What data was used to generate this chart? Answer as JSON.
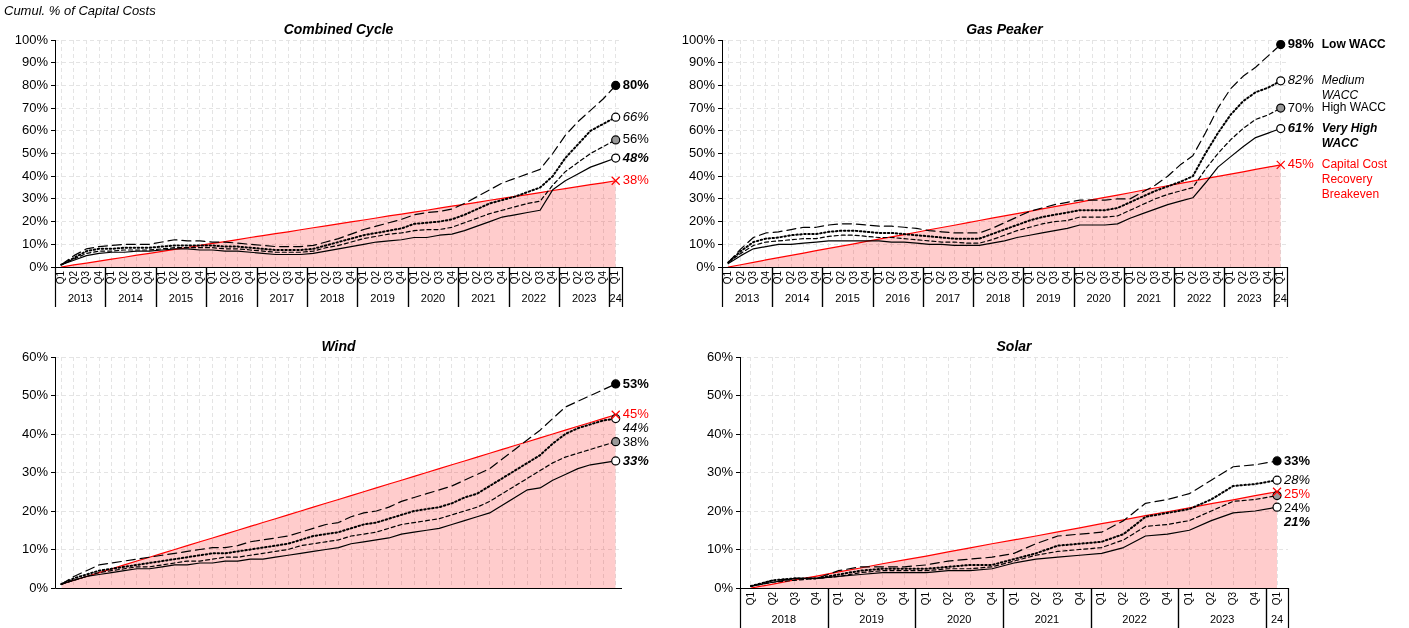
{
  "chart_data": [
    {
      "type": "line",
      "title": "Combined Cycle",
      "ylabel": "Cumul. % of Capital Costs",
      "grid": true,
      "ylim": [
        0,
        100
      ],
      "yticks": [
        {
          "value": 0,
          "label": "0%"
        },
        {
          "value": 10,
          "label": "10%"
        },
        {
          "value": 20,
          "label": "20%"
        },
        {
          "value": 30,
          "label": "30%"
        },
        {
          "value": 40,
          "label": "40%"
        },
        {
          "value": 50,
          "label": "50%"
        },
        {
          "value": 60,
          "label": "60%"
        },
        {
          "value": 70,
          "label": "70%"
        },
        {
          "value": 80,
          "label": "80%"
        },
        {
          "value": 90,
          "label": "90%"
        },
        {
          "value": 100,
          "label": "100%"
        }
      ],
      "categories": [
        "Q1",
        "Q2",
        "Q3",
        "Q4",
        "Q1",
        "Q2",
        "Q3",
        "Q4",
        "Q1",
        "Q2",
        "Q3",
        "Q4",
        "Q1",
        "Q2",
        "Q3",
        "Q4",
        "Q1",
        "Q2",
        "Q3",
        "Q4",
        "Q1",
        "Q2",
        "Q3",
        "Q4",
        "Q1",
        "Q2",
        "Q3",
        "Q4",
        "Q1",
        "Q2",
        "Q3",
        "Q4",
        "Q1",
        "Q2",
        "Q3",
        "Q4",
        "Q1",
        "Q2",
        "Q3",
        "Q4",
        "Q1",
        "Q2",
        "Q3",
        "Q4",
        "Q1"
      ],
      "annotations": [
        "2013",
        "2014",
        "2015",
        "2016",
        "2017",
        "2018",
        "2019",
        "2020",
        "2021",
        "2022",
        "2023",
        "24"
      ],
      "series": [
        {
          "color": "#000000",
          "line_style": "dashed",
          "values": [
            1,
            5,
            8,
            9,
            9.5,
            10,
            10,
            10,
            11,
            12,
            11.5,
            11.5,
            11,
            11,
            10.5,
            10,
            9.5,
            9,
            9,
            9,
            9.5,
            11,
            12.5,
            14.5,
            16.5,
            18,
            19.5,
            21,
            23,
            24,
            24.5,
            25.5,
            28,
            31,
            34,
            37,
            39,
            41,
            43,
            50,
            58,
            64,
            69,
            74,
            80
          ],
          "value_labels": [
            null,
            null,
            null,
            null,
            null,
            null,
            null,
            null,
            null,
            null,
            null,
            null,
            null,
            null,
            null,
            null,
            null,
            null,
            null,
            null,
            null,
            null,
            null,
            null,
            null,
            null,
            null,
            null,
            null,
            null,
            null,
            null,
            null,
            null,
            null,
            null,
            null,
            null,
            null,
            null,
            null,
            null,
            null,
            null,
            "80%"
          ]
        },
        {
          "color": "#000000",
          "line_style": "dotted",
          "values": [
            1,
            4,
            7,
            8,
            8,
            8.5,
            8.5,
            8.5,
            9,
            9.5,
            9.5,
            9.5,
            9.5,
            9,
            9,
            8.5,
            8,
            7.5,
            7.5,
            7.5,
            8,
            9.5,
            11,
            12.5,
            14,
            15,
            16,
            17,
            19,
            19.5,
            20,
            21,
            23,
            25.5,
            28,
            29.5,
            31,
            33,
            35,
            40,
            48,
            54,
            60,
            63,
            66
          ],
          "value_labels": [
            null,
            null,
            null,
            null,
            null,
            null,
            null,
            null,
            null,
            null,
            null,
            null,
            null,
            null,
            null,
            null,
            null,
            null,
            null,
            null,
            null,
            null,
            null,
            null,
            null,
            null,
            null,
            null,
            null,
            null,
            null,
            null,
            null,
            null,
            null,
            null,
            null,
            null,
            null,
            null,
            null,
            null,
            null,
            null,
            "66%"
          ]
        },
        {
          "color": "#000000",
          "line_style": "dashed",
          "values": [
            1,
            3.5,
            6,
            7,
            7,
            7.5,
            7.5,
            7.5,
            8,
            8.5,
            8.5,
            8.5,
            8.5,
            8,
            8,
            7.5,
            7,
            6.5,
            6.5,
            6.5,
            7,
            8.5,
            9.5,
            11,
            12.5,
            13.5,
            14.5,
            15,
            16,
            16.5,
            16.5,
            17.5,
            19.5,
            21.5,
            23.5,
            25,
            26.5,
            28,
            29,
            36,
            42,
            46,
            50,
            53,
            56
          ],
          "value_labels": [
            null,
            null,
            null,
            null,
            null,
            null,
            null,
            null,
            null,
            null,
            null,
            null,
            null,
            null,
            null,
            null,
            null,
            null,
            null,
            null,
            null,
            null,
            null,
            null,
            null,
            null,
            null,
            null,
            null,
            null,
            null,
            null,
            null,
            null,
            null,
            null,
            null,
            null,
            null,
            null,
            null,
            null,
            null,
            null,
            "56%"
          ]
        },
        {
          "color": "#000000",
          "line_style": "solid",
          "values": [
            1,
            3,
            5,
            6,
            6.5,
            6.5,
            7,
            7,
            7.5,
            8,
            8,
            7.5,
            7.5,
            7,
            7,
            6.5,
            6,
            5.5,
            5.5,
            5.5,
            6,
            7,
            8,
            9,
            10,
            11,
            11.5,
            12,
            13,
            13,
            14,
            14.5,
            16,
            18,
            20,
            22,
            23,
            24,
            25,
            34,
            38,
            41,
            44,
            46,
            48
          ],
          "value_labels": [
            null,
            null,
            null,
            null,
            null,
            null,
            null,
            null,
            null,
            null,
            null,
            null,
            null,
            null,
            null,
            null,
            null,
            null,
            null,
            null,
            null,
            null,
            null,
            null,
            null,
            null,
            null,
            null,
            null,
            null,
            null,
            null,
            null,
            null,
            null,
            null,
            null,
            null,
            null,
            null,
            null,
            null,
            null,
            null,
            "48%"
          ]
        },
        {
          "type": "area",
          "color": "#ff0000",
          "line_style": "solid",
          "values": [
            0,
            0.9,
            1.7,
            2.6,
            3.5,
            4.3,
            5.2,
            6,
            6.9,
            7.8,
            8.6,
            9.5,
            10.4,
            11.2,
            12.1,
            13,
            13.8,
            14.7,
            15.5,
            16.4,
            17.3,
            18.1,
            19,
            19.9,
            20.7,
            21.6,
            22.5,
            23.3,
            24.2,
            25,
            25.9,
            26.8,
            27.6,
            28.5,
            29.4,
            30.2,
            31.1,
            31.9,
            32.8,
            33.7,
            34.5,
            35.4,
            36.3,
            37.1,
            38
          ],
          "value_labels": [
            null,
            null,
            null,
            null,
            null,
            null,
            null,
            null,
            null,
            null,
            null,
            null,
            null,
            null,
            null,
            null,
            null,
            null,
            null,
            null,
            null,
            null,
            null,
            null,
            null,
            null,
            null,
            null,
            null,
            null,
            null,
            null,
            null,
            null,
            null,
            null,
            null,
            null,
            null,
            null,
            null,
            null,
            null,
            null,
            "38%"
          ]
        }
      ]
    },
    {
      "type": "line",
      "title": "Gas Peaker",
      "grid": true,
      "ylim": [
        0,
        100
      ],
      "yticks": [
        {
          "value": 0,
          "label": "0%"
        },
        {
          "value": 10,
          "label": "10%"
        },
        {
          "value": 20,
          "label": "20%"
        },
        {
          "value": 30,
          "label": "30%"
        },
        {
          "value": 40,
          "label": "40%"
        },
        {
          "value": 50,
          "label": "50%"
        },
        {
          "value": 60,
          "label": "60%"
        },
        {
          "value": 70,
          "label": "70%"
        },
        {
          "value": 80,
          "label": "80%"
        },
        {
          "value": 90,
          "label": "90%"
        },
        {
          "value": 100,
          "label": "100%"
        }
      ],
      "categories": [
        "Q1",
        "Q2",
        "Q3",
        "Q4",
        "Q1",
        "Q2",
        "Q3",
        "Q4",
        "Q1",
        "Q2",
        "Q3",
        "Q4",
        "Q1",
        "Q2",
        "Q3",
        "Q4",
        "Q1",
        "Q2",
        "Q3",
        "Q4",
        "Q1",
        "Q2",
        "Q3",
        "Q4",
        "Q1",
        "Q2",
        "Q3",
        "Q4",
        "Q1",
        "Q2",
        "Q3",
        "Q4",
        "Q1",
        "Q2",
        "Q3",
        "Q4",
        "Q1",
        "Q2",
        "Q3",
        "Q4",
        "Q1",
        "Q2",
        "Q3",
        "Q4",
        "Q1"
      ],
      "annotations": [
        "2013",
        "2014",
        "2015",
        "2016",
        "2017",
        "2018",
        "2019",
        "2020",
        "2021",
        "2022",
        "2023",
        "24"
      ],
      "series": [
        {
          "name": "Low WACC",
          "color": "#000000",
          "line_style": "dashed",
          "values": [
            2,
            8,
            13,
            15,
            15.5,
            16.5,
            17.5,
            17.5,
            18.5,
            19,
            19,
            18.5,
            18,
            18,
            17.5,
            17,
            16,
            15.5,
            15,
            15,
            15,
            17,
            19.5,
            22,
            24.5,
            26,
            27.5,
            28.5,
            29.5,
            29.5,
            29.5,
            30,
            30,
            33,
            36,
            40,
            45,
            49,
            59,
            70,
            78.5,
            84,
            88,
            93,
            98
          ],
          "value_labels": [
            null,
            null,
            null,
            null,
            null,
            null,
            null,
            null,
            null,
            null,
            null,
            null,
            null,
            null,
            null,
            null,
            null,
            null,
            null,
            null,
            null,
            null,
            null,
            null,
            null,
            null,
            null,
            null,
            null,
            null,
            null,
            null,
            null,
            null,
            null,
            null,
            null,
            null,
            null,
            null,
            null,
            null,
            null,
            null,
            "98%"
          ]
        },
        {
          "name": "Medium WACC",
          "color": "#000000",
          "line_style": "dotted",
          "values": [
            2,
            7,
            11,
            12.5,
            13,
            14,
            14.5,
            14.5,
            15.5,
            16,
            16,
            15.5,
            15,
            15,
            14.5,
            14,
            13.5,
            13,
            12.5,
            12.5,
            12.5,
            14.5,
            16.5,
            18.5,
            20.5,
            22,
            23,
            24,
            25,
            25,
            25,
            26,
            28.5,
            31,
            33.5,
            35.5,
            37.5,
            40,
            50,
            59,
            67,
            73,
            77,
            79,
            82
          ],
          "value_labels": [
            null,
            null,
            null,
            null,
            null,
            null,
            null,
            null,
            null,
            null,
            null,
            null,
            null,
            null,
            null,
            null,
            null,
            null,
            null,
            null,
            null,
            null,
            null,
            null,
            null,
            null,
            null,
            null,
            null,
            null,
            null,
            null,
            null,
            null,
            null,
            null,
            null,
            null,
            null,
            null,
            null,
            null,
            null,
            null,
            "82%"
          ]
        },
        {
          "name": "High WACC",
          "color": "#000000",
          "line_style": "dashed",
          "values": [
            2,
            6,
            9.5,
            11,
            11.5,
            12,
            12.5,
            12.5,
            13.5,
            14,
            14,
            13.5,
            13,
            13,
            12.5,
            12,
            11.5,
            11,
            11,
            10.5,
            10.5,
            12,
            14,
            16,
            17.5,
            19,
            20,
            20.5,
            22,
            22,
            22,
            22.5,
            25,
            27.5,
            30,
            32,
            33.5,
            35,
            43,
            50,
            56,
            61,
            65,
            67,
            70
          ],
          "value_labels": [
            null,
            null,
            null,
            null,
            null,
            null,
            null,
            null,
            null,
            null,
            null,
            null,
            null,
            null,
            null,
            null,
            null,
            null,
            null,
            null,
            null,
            null,
            null,
            null,
            null,
            null,
            null,
            null,
            null,
            null,
            null,
            null,
            null,
            null,
            null,
            null,
            null,
            null,
            null,
            null,
            null,
            null,
            null,
            null,
            "70%"
          ]
        },
        {
          "name": "Very High WACC",
          "color": "#000000",
          "line_style": "solid",
          "values": [
            1.5,
            5,
            8,
            9,
            10,
            10,
            10.5,
            11,
            11.5,
            11.5,
            11.5,
            11.5,
            11.5,
            11,
            11,
            10.5,
            10,
            10,
            9.5,
            9.5,
            9.5,
            10.5,
            11.5,
            13,
            14,
            15,
            16,
            17,
            18.5,
            18.5,
            18.5,
            19,
            21.5,
            23.5,
            25.5,
            27.5,
            29,
            30.5,
            37,
            44,
            48.5,
            53,
            57,
            59,
            61
          ],
          "value_labels": [
            null,
            null,
            null,
            null,
            null,
            null,
            null,
            null,
            null,
            null,
            null,
            null,
            null,
            null,
            null,
            null,
            null,
            null,
            null,
            null,
            null,
            null,
            null,
            null,
            null,
            null,
            null,
            null,
            null,
            null,
            null,
            null,
            null,
            null,
            null,
            null,
            null,
            null,
            null,
            null,
            null,
            null,
            null,
            null,
            "61%"
          ]
        },
        {
          "name": "Capital Cost Recovery Breakeven",
          "type": "area",
          "color": "#ff0000",
          "line_style": "solid",
          "values": [
            0,
            1,
            2,
            3.1,
            4.1,
            5.1,
            6.1,
            7.2,
            8.2,
            9.2,
            10.2,
            11.3,
            12.3,
            13.3,
            14.3,
            15.3,
            16.4,
            17.4,
            18.4,
            19.4,
            20.5,
            21.5,
            22.5,
            23.5,
            24.5,
            25.6,
            26.6,
            27.6,
            28.6,
            29.7,
            30.7,
            31.7,
            32.7,
            33.8,
            34.8,
            35.8,
            36.8,
            37.8,
            38.9,
            39.9,
            40.9,
            41.9,
            43,
            44,
            45
          ],
          "value_labels": [
            null,
            null,
            null,
            null,
            null,
            null,
            null,
            null,
            null,
            null,
            null,
            null,
            null,
            null,
            null,
            null,
            null,
            null,
            null,
            null,
            null,
            null,
            null,
            null,
            null,
            null,
            null,
            null,
            null,
            null,
            null,
            null,
            null,
            null,
            null,
            null,
            null,
            null,
            null,
            null,
            null,
            null,
            null,
            null,
            "45%"
          ]
        }
      ]
    },
    {
      "type": "line",
      "title": "Wind",
      "grid": true,
      "ylim": [
        0,
        60
      ],
      "tick_labels": "y",
      "yticks": [
        {
          "value": 0,
          "label": "0%"
        },
        {
          "value": 10,
          "label": "10%"
        },
        {
          "value": 20,
          "label": "20%"
        },
        {
          "value": 30,
          "label": "30%"
        },
        {
          "value": 40,
          "label": "40%"
        },
        {
          "value": 50,
          "label": "50%"
        },
        {
          "value": 60,
          "label": "60%"
        }
      ],
      "categories": [
        null,
        null,
        null,
        null,
        null,
        null,
        null,
        null,
        null,
        null,
        null,
        null,
        null,
        null,
        null,
        null,
        null,
        null,
        null,
        null,
        null,
        null,
        null,
        null,
        null,
        null,
        null,
        null,
        null,
        null,
        null,
        null,
        null,
        null,
        null,
        null,
        null,
        null,
        null,
        null,
        null,
        null,
        null,
        null,
        null
      ],
      "series": [
        {
          "color": "#000000",
          "line_style": "dashed",
          "values": [
            1,
            3,
            4.5,
            6,
            6.5,
            7,
            7.5,
            8,
            8.5,
            9,
            9.5,
            10,
            10.5,
            10.5,
            11,
            12,
            12.5,
            13,
            13.5,
            14.5,
            15.5,
            16.5,
            17,
            18.5,
            19.5,
            20,
            21,
            22.5,
            23.5,
            24.5,
            25.5,
            26.5,
            28,
            29.5,
            31,
            33.5,
            36,
            38.5,
            41,
            44,
            47,
            48.5,
            50,
            51.5,
            53
          ],
          "value_labels": [
            null,
            null,
            null,
            null,
            null,
            null,
            null,
            null,
            null,
            null,
            null,
            null,
            null,
            null,
            null,
            null,
            null,
            null,
            null,
            null,
            null,
            null,
            null,
            null,
            null,
            null,
            null,
            null,
            null,
            null,
            null,
            null,
            null,
            null,
            null,
            null,
            null,
            null,
            null,
            null,
            null,
            null,
            null,
            null,
            "53%"
          ]
        },
        {
          "color": "#000000",
          "line_style": "dotted",
          "values": [
            1,
            2.5,
            3.5,
            4.5,
            5,
            5.5,
            6,
            6.5,
            7,
            7.5,
            8,
            8.5,
            9,
            9,
            9.5,
            10,
            10.5,
            11,
            11.5,
            12.5,
            13.5,
            14,
            14.5,
            15.5,
            16.5,
            17,
            18,
            19,
            20,
            20.5,
            21,
            22,
            23.5,
            24.5,
            26.5,
            28.5,
            30.5,
            32.5,
            34.5,
            37.5,
            40,
            41.5,
            42.5,
            43.5,
            44
          ],
          "value_labels": [
            null,
            null,
            null,
            null,
            null,
            null,
            null,
            null,
            null,
            null,
            null,
            null,
            null,
            null,
            null,
            null,
            null,
            null,
            null,
            null,
            null,
            null,
            null,
            null,
            null,
            null,
            null,
            null,
            null,
            null,
            null,
            null,
            null,
            null,
            null,
            null,
            null,
            null,
            null,
            null,
            null,
            null,
            null,
            null,
            "44%"
          ]
        },
        {
          "color": "#000000",
          "line_style": "dashed",
          "values": [
            1,
            2,
            3,
            4,
            4.5,
            5,
            5.5,
            5.5,
            6,
            6.5,
            7,
            7,
            7.5,
            8,
            8,
            8.5,
            9,
            9.5,
            10,
            11,
            11.5,
            12,
            12.5,
            13.5,
            14,
            14.5,
            15.5,
            16.5,
            17,
            17.5,
            18,
            19,
            20,
            21,
            22.5,
            24.5,
            26.5,
            28.5,
            30.5,
            32.5,
            34,
            35,
            36,
            37,
            38
          ],
          "value_labels": [
            null,
            null,
            null,
            null,
            null,
            null,
            null,
            null,
            null,
            null,
            null,
            null,
            null,
            null,
            null,
            null,
            null,
            null,
            null,
            null,
            null,
            null,
            null,
            null,
            null,
            null,
            null,
            null,
            null,
            null,
            null,
            null,
            null,
            null,
            null,
            null,
            null,
            null,
            null,
            null,
            null,
            null,
            null,
            null,
            "38%"
          ]
        },
        {
          "color": "#000000",
          "line_style": "solid",
          "values": [
            1,
            2,
            3,
            3.5,
            4,
            4.5,
            5,
            5,
            5.5,
            6,
            6,
            6.5,
            6.5,
            7,
            7,
            7.5,
            7.5,
            8,
            8.5,
            9,
            9.5,
            10,
            10.5,
            11.5,
            12,
            12.5,
            13,
            14,
            14.5,
            15,
            15.5,
            16.5,
            17.5,
            18.5,
            19.5,
            21.5,
            23.5,
            25.5,
            26,
            28,
            29.5,
            31,
            32,
            32.5,
            33
          ],
          "value_labels": [
            null,
            null,
            null,
            null,
            null,
            null,
            null,
            null,
            null,
            null,
            null,
            null,
            null,
            null,
            null,
            null,
            null,
            null,
            null,
            null,
            null,
            null,
            null,
            null,
            null,
            null,
            null,
            null,
            null,
            null,
            null,
            null,
            null,
            null,
            null,
            null,
            null,
            null,
            null,
            null,
            null,
            null,
            null,
            null,
            "33%"
          ]
        },
        {
          "type": "area",
          "color": "#ff0000",
          "line_style": "solid",
          "values": [
            1,
            2,
            3,
            4,
            5,
            6,
            7,
            8,
            9,
            10,
            11,
            12,
            13,
            14,
            15,
            16,
            17,
            18,
            19,
            20,
            21,
            22,
            23,
            24,
            25,
            26,
            27,
            28,
            29,
            30,
            31,
            32,
            33,
            34,
            35,
            36,
            37,
            38,
            39,
            40,
            41,
            42,
            43,
            44,
            45
          ],
          "value_labels": [
            null,
            null,
            null,
            null,
            null,
            null,
            null,
            null,
            null,
            null,
            null,
            null,
            null,
            null,
            null,
            null,
            null,
            null,
            null,
            null,
            null,
            null,
            null,
            null,
            null,
            null,
            null,
            null,
            null,
            null,
            null,
            null,
            null,
            null,
            null,
            null,
            null,
            null,
            null,
            null,
            null,
            null,
            null,
            null,
            "45%"
          ]
        }
      ]
    },
    {
      "type": "line",
      "title": "Solar",
      "grid": true,
      "ylim": [
        0,
        60
      ],
      "yticks": [
        {
          "value": 0,
          "label": "0%"
        },
        {
          "value": 10,
          "label": "10%"
        },
        {
          "value": 20,
          "label": "20%"
        },
        {
          "value": 30,
          "label": "30%"
        },
        {
          "value": 40,
          "label": "40%"
        },
        {
          "value": 50,
          "label": "50%"
        },
        {
          "value": 60,
          "label": "60%"
        }
      ],
      "categories": [
        "Q1",
        "Q2",
        "Q3",
        "Q4",
        "Q1",
        "Q2",
        "Q3",
        "Q4",
        "Q1",
        "Q2",
        "Q3",
        "Q4",
        "Q1",
        "Q2",
        "Q3",
        "Q4",
        "Q1",
        "Q2",
        "Q3",
        "Q4",
        "Q1",
        "Q2",
        "Q3",
        "Q4",
        "Q1"
      ],
      "annotations": [
        "2018",
        "2019",
        "2020",
        "2021",
        "2022",
        "2023",
        "24"
      ],
      "series": [
        {
          "color": "#000000",
          "line_style": "dashed",
          "values": [
            0.5,
            2,
            2.5,
            2.5,
            4.5,
            5.5,
            5.5,
            5.5,
            6,
            7,
            7.5,
            8,
            9,
            11.5,
            13.5,
            14,
            14.5,
            17.5,
            22,
            23,
            24.5,
            28,
            31.5,
            32,
            33
          ],
          "value_labels": [
            null,
            null,
            null,
            null,
            null,
            null,
            null,
            null,
            null,
            null,
            null,
            null,
            null,
            null,
            null,
            null,
            null,
            null,
            null,
            null,
            null,
            null,
            null,
            null,
            "33%"
          ]
        },
        {
          "color": "#000000",
          "line_style": "dotted",
          "values": [
            0.5,
            2,
            2.5,
            2.5,
            3.5,
            4.5,
            5,
            5,
            5,
            5.5,
            6,
            6,
            7.5,
            9,
            11,
            11.5,
            12,
            14,
            18.5,
            19.5,
            20.5,
            23,
            26.5,
            27,
            28
          ],
          "value_labels": [
            null,
            null,
            null,
            null,
            null,
            null,
            null,
            null,
            null,
            null,
            null,
            null,
            null,
            null,
            null,
            null,
            null,
            null,
            null,
            null,
            null,
            null,
            null,
            null,
            "28%"
          ]
        },
        {
          "color": "#000000",
          "line_style": "dashed",
          "values": [
            0.5,
            1.5,
            2,
            2.5,
            3,
            4,
            4.5,
            4.5,
            4.5,
            5,
            5,
            5.5,
            7,
            8.5,
            9.5,
            10,
            10.5,
            12.5,
            16,
            16.5,
            17.5,
            20,
            22.5,
            23,
            24
          ],
          "value_labels": [
            null,
            null,
            null,
            null,
            null,
            null,
            null,
            null,
            null,
            null,
            null,
            null,
            null,
            null,
            null,
            null,
            null,
            null,
            null,
            null,
            null,
            null,
            null,
            null,
            "24%"
          ]
        },
        {
          "color": "#000000",
          "line_style": "solid",
          "values": [
            0.5,
            1.5,
            2.5,
            2.5,
            3,
            3.5,
            4,
            4,
            4,
            4.5,
            4.5,
            5,
            6.5,
            7.5,
            8,
            8.5,
            9,
            10.5,
            13.5,
            14,
            15,
            17.5,
            19.5,
            20,
            21
          ],
          "value_labels": [
            null,
            null,
            null,
            null,
            null,
            null,
            null,
            null,
            null,
            null,
            null,
            null,
            null,
            null,
            null,
            null,
            null,
            null,
            null,
            null,
            null,
            null,
            null,
            null,
            "21%"
          ]
        },
        {
          "type": "area",
          "color": "#ff0000",
          "line_style": "solid",
          "values": [
            0,
            1,
            2.1,
            3.1,
            4.2,
            5.2,
            6.3,
            7.3,
            8.3,
            9.4,
            10.4,
            11.5,
            12.5,
            13.5,
            14.6,
            15.6,
            16.7,
            17.7,
            18.8,
            19.8,
            20.8,
            21.9,
            22.9,
            24,
            25
          ],
          "value_labels": [
            null,
            null,
            null,
            null,
            null,
            null,
            null,
            null,
            null,
            null,
            null,
            null,
            null,
            null,
            null,
            null,
            null,
            null,
            null,
            null,
            null,
            null,
            null,
            null,
            "25%"
          ]
        }
      ]
    }
  ]
}
